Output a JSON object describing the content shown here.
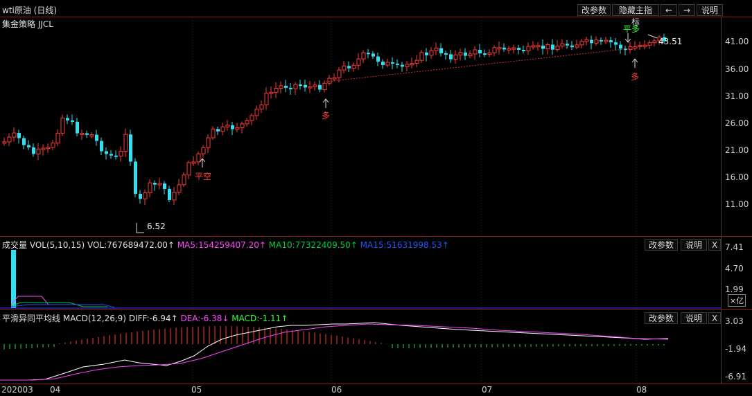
{
  "header": {
    "title": "wti原油 (日线)",
    "buttons": {
      "params": "改参数",
      "hide_indicator": "隐藏主指标",
      "prev_icon": "arrow-left",
      "next_icon": "arrow-right",
      "help": "说明"
    }
  },
  "main_panel": {
    "strategy_label": "集金策略 JJCL",
    "y_ticks": [
      "41.00",
      "36.00",
      "31.00",
      "26.00",
      "21.00",
      "16.00",
      "11.00"
    ],
    "low_label": "6.52",
    "last_label": "43.51",
    "signals": {
      "close_short": "平空",
      "long_1": "多",
      "close_long": "平多",
      "long_2": "多"
    }
  },
  "volume_panel": {
    "title": "成交量",
    "indicator": "VOL(5,10,15)",
    "vol": "VOL:767689472.00↑",
    "ma5": "MA5:154259407.20↑",
    "ma10": "MA10:77322409.50↑",
    "ma15": "MA15:51631998.53↑",
    "buttons": {
      "params": "改参数",
      "help": "说明",
      "close": "X"
    },
    "y_ticks": [
      "7.41",
      "4.70",
      "1.99"
    ],
    "unit": "×亿"
  },
  "macd_panel": {
    "title": "平滑异同平均线",
    "indicator": "MACD(12,26,9)",
    "diff": "DIFF:-6.94↑",
    "dea": "DEA:-6.38↓",
    "macd": "MACD:-1.11↑",
    "buttons": {
      "params": "改参数",
      "help": "说明",
      "close": "X"
    },
    "y_ticks": [
      "3.03",
      "-1.94",
      "-6.91"
    ]
  },
  "x_axis": {
    "labels": [
      "202003",
      "04",
      "05",
      "06",
      "07",
      "08"
    ]
  },
  "colors": {
    "up": "#ff3b3b",
    "down": "#33e0f0",
    "diff_line": "#ffffff",
    "dea_line": "#ff44ff",
    "ma10": "#00cc44",
    "ma15": "#2255ff",
    "border": "#8a1a1a"
  }
}
